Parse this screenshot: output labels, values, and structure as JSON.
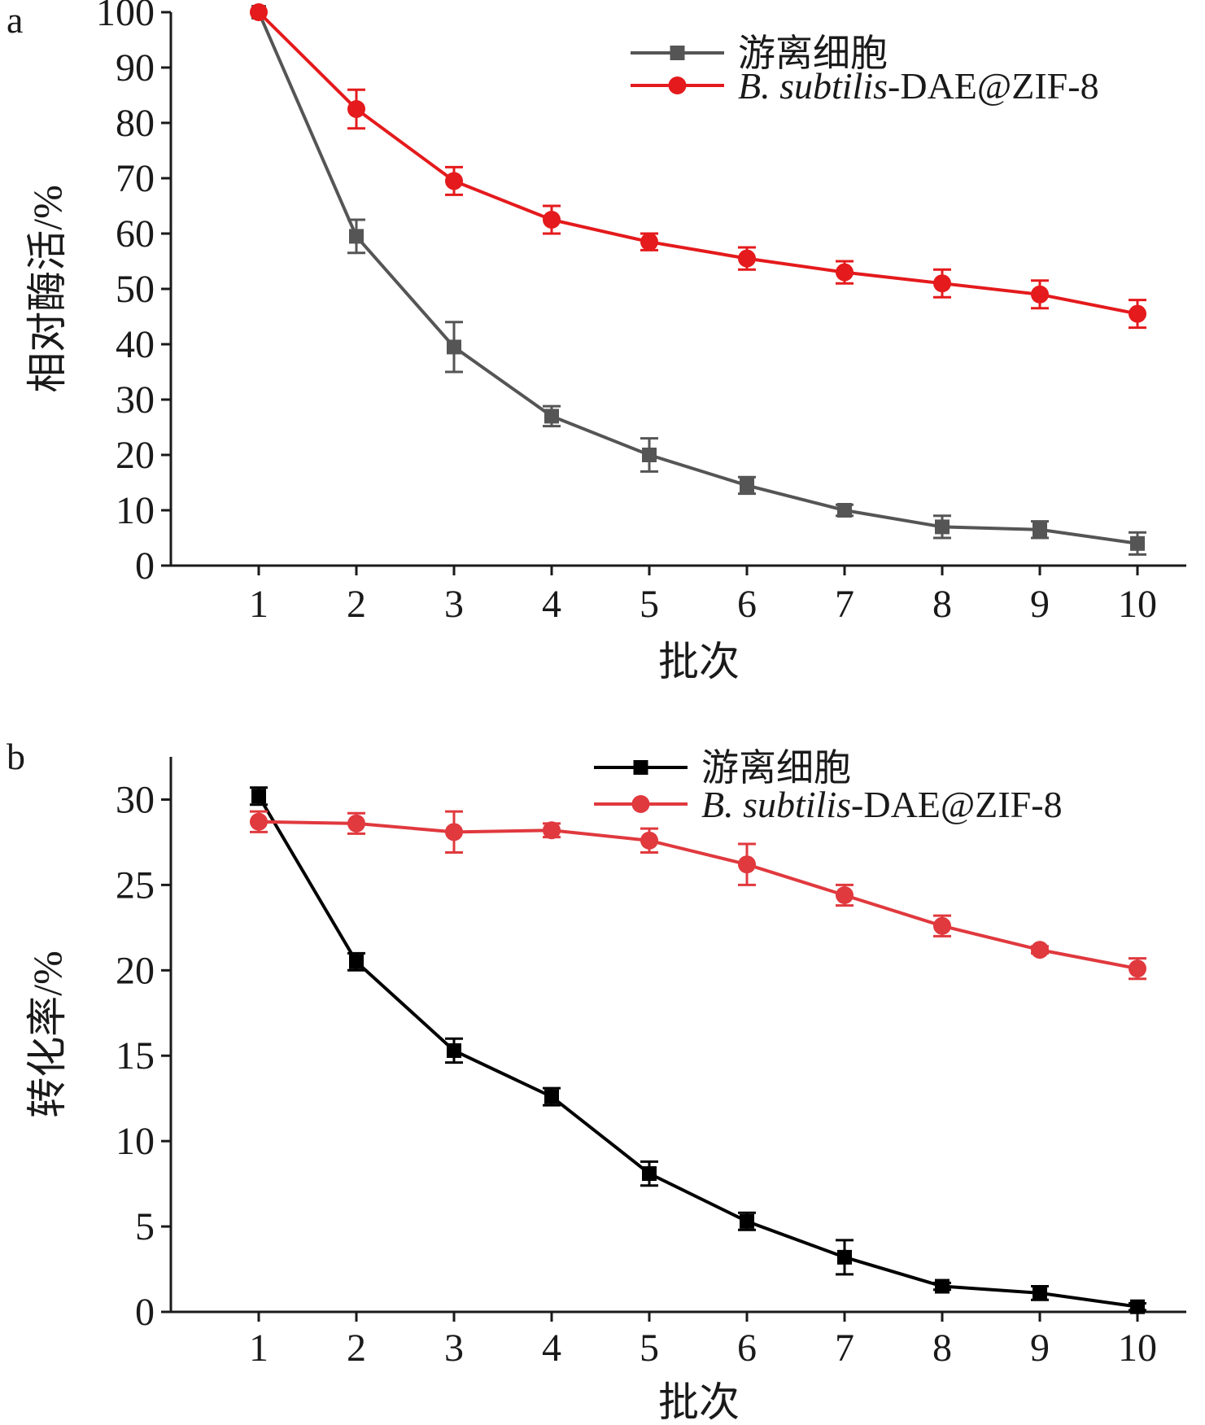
{
  "chart_data": [
    {
      "panel": "a",
      "type": "line",
      "xlabel": "批次",
      "ylabel": "相对酶活/%",
      "categories": [
        "1",
        "2",
        "3",
        "4",
        "5",
        "6",
        "7",
        "8",
        "9",
        "10"
      ],
      "x": [
        1,
        2,
        3,
        4,
        5,
        6,
        7,
        8,
        9,
        10
      ],
      "xlim": [
        0.1,
        10.5
      ],
      "ylim": [
        0,
        100
      ],
      "yticks": [
        0,
        10,
        20,
        30,
        40,
        50,
        60,
        70,
        80,
        90,
        100
      ],
      "grid": false,
      "legend_position": "top-right",
      "series": [
        {
          "name": "游离细胞",
          "legend_main": "游离细胞",
          "marker": "square",
          "color": "#555555",
          "values": [
            100,
            59.5,
            39.5,
            27,
            20,
            14.5,
            10,
            7,
            6.5,
            4
          ],
          "errors": [
            0,
            3,
            4.5,
            1.8,
            3,
            1.5,
            1,
            2,
            1.5,
            2
          ]
        },
        {
          "name": "B. subtilis-DAE@ZIF-8",
          "legend_italic": "B. subtilis",
          "legend_rest": "-DAE@ZIF-8",
          "marker": "circle",
          "color": "#e41a1c",
          "values": [
            100,
            82.5,
            69.5,
            62.5,
            58.5,
            55.5,
            53,
            51,
            49,
            45.5
          ],
          "errors": [
            0,
            3.5,
            2.5,
            2.5,
            1.5,
            2,
            2,
            2.5,
            2.5,
            2.5
          ]
        }
      ]
    },
    {
      "panel": "b",
      "type": "line",
      "xlabel": "批次",
      "ylabel": "转化率/%",
      "categories": [
        "1",
        "2",
        "3",
        "4",
        "5",
        "6",
        "7",
        "8",
        "9",
        "10"
      ],
      "x": [
        1,
        2,
        3,
        4,
        5,
        6,
        7,
        8,
        9,
        10
      ],
      "xlim": [
        0.1,
        10.5
      ],
      "ylim": [
        0,
        32.5
      ],
      "yticks": [
        0,
        5,
        10,
        15,
        20,
        25,
        30
      ],
      "grid": false,
      "legend_position": "top-right",
      "series": [
        {
          "name": "游离细胞",
          "legend_main": "游离细胞",
          "marker": "square",
          "color": "#000000",
          "values": [
            30.2,
            20.5,
            15.3,
            12.6,
            8.1,
            5.3,
            3.2,
            1.5,
            1.1,
            0.3
          ],
          "errors": [
            0.5,
            0.5,
            0.7,
            0.5,
            0.7,
            0.5,
            1.0,
            0.2,
            0.4,
            0.2
          ]
        },
        {
          "name": "B. subtilis-DAE@ZIF-8",
          "legend_italic": "B. subtilis",
          "legend_rest": "-DAE@ZIF-8",
          "marker": "circle",
          "color": "#e0393e",
          "values": [
            28.7,
            28.6,
            28.1,
            28.2,
            27.6,
            26.2,
            24.4,
            22.6,
            21.2,
            20.1
          ],
          "errors": [
            0.6,
            0.6,
            1.2,
            0.4,
            0.7,
            1.2,
            0.6,
            0.6,
            0.2,
            0.6
          ]
        }
      ]
    }
  ]
}
